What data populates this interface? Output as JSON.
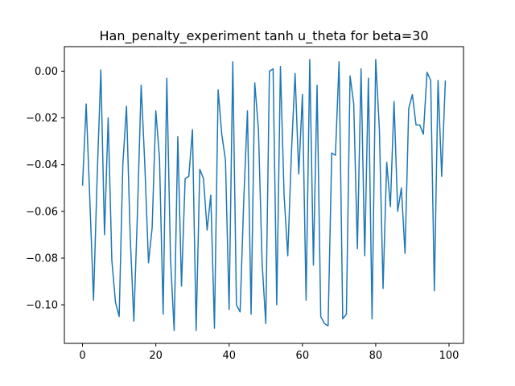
{
  "chart_data": {
    "type": "line",
    "title": "Han_penalty_experiment tanh u_theta for beta=30",
    "xlabel": "",
    "ylabel": "",
    "xlim": [
      -4.95,
      103.95
    ],
    "ylim": [
      -0.1165,
      0.0105
    ],
    "grid": false,
    "x_ticks": [
      0,
      20,
      40,
      60,
      80,
      100
    ],
    "x_tick_labels": [
      "0",
      "20",
      "40",
      "60",
      "80",
      "100"
    ],
    "y_ticks": [
      0.0,
      -0.02,
      -0.04,
      -0.06,
      -0.08,
      -0.1
    ],
    "y_tick_labels": [
      "0.00",
      "−0.02",
      "−0.04",
      "−0.06",
      "−0.08",
      "−0.10"
    ],
    "series": [
      {
        "name": "",
        "color": "#1f77b4",
        "x": [
          0,
          1,
          2,
          3,
          4,
          5,
          6,
          7,
          8,
          9,
          10,
          11,
          12,
          13,
          14,
          15,
          16,
          17,
          18,
          19,
          20,
          21,
          22,
          23,
          24,
          25,
          26,
          27,
          28,
          29,
          30,
          31,
          32,
          33,
          34,
          35,
          36,
          37,
          38,
          39,
          40,
          41,
          42,
          43,
          44,
          45,
          46,
          47,
          48,
          49,
          50,
          51,
          52,
          53,
          54,
          55,
          56,
          57,
          58,
          59,
          60,
          61,
          62,
          63,
          64,
          65,
          66,
          67,
          68,
          69,
          70,
          71,
          72,
          73,
          74,
          75,
          76,
          77,
          78,
          79,
          80,
          81,
          82,
          83,
          84,
          85,
          86,
          87,
          88,
          89,
          90,
          91,
          92,
          93,
          94,
          95,
          96,
          97,
          98,
          99
        ],
        "values": [
          -0.049,
          -0.014,
          -0.055,
          -0.098,
          -0.045,
          0.0005,
          -0.07,
          -0.02,
          -0.081,
          -0.099,
          -0.105,
          -0.04,
          -0.015,
          -0.07,
          -0.107,
          -0.06,
          -0.006,
          -0.04,
          -0.082,
          -0.067,
          -0.017,
          -0.037,
          -0.104,
          -0.003,
          -0.08,
          -0.111,
          -0.028,
          -0.092,
          -0.046,
          -0.045,
          -0.025,
          -0.111,
          -0.042,
          -0.046,
          -0.068,
          -0.053,
          -0.11,
          -0.008,
          -0.027,
          -0.038,
          -0.102,
          0.004,
          -0.1,
          -0.103,
          -0.055,
          -0.017,
          -0.104,
          -0.005,
          -0.025,
          -0.082,
          -0.108,
          0.0,
          0.001,
          -0.1,
          0.002,
          -0.053,
          -0.079,
          -0.035,
          -0.001,
          -0.044,
          -0.01,
          -0.098,
          0.005,
          -0.083,
          -0.006,
          -0.105,
          -0.108,
          -0.109,
          -0.035,
          -0.036,
          0.004,
          -0.106,
          -0.104,
          -0.002,
          -0.014,
          -0.076,
          0.001,
          -0.079,
          -0.003,
          -0.106,
          0.005,
          -0.025,
          -0.093,
          -0.039,
          -0.058,
          -0.013,
          -0.06,
          -0.05,
          -0.078,
          -0.016,
          -0.01,
          -0.023,
          -0.023,
          -0.027,
          -0.0005,
          -0.004,
          -0.094,
          -0.004,
          -0.045,
          -0.004
        ]
      }
    ]
  }
}
